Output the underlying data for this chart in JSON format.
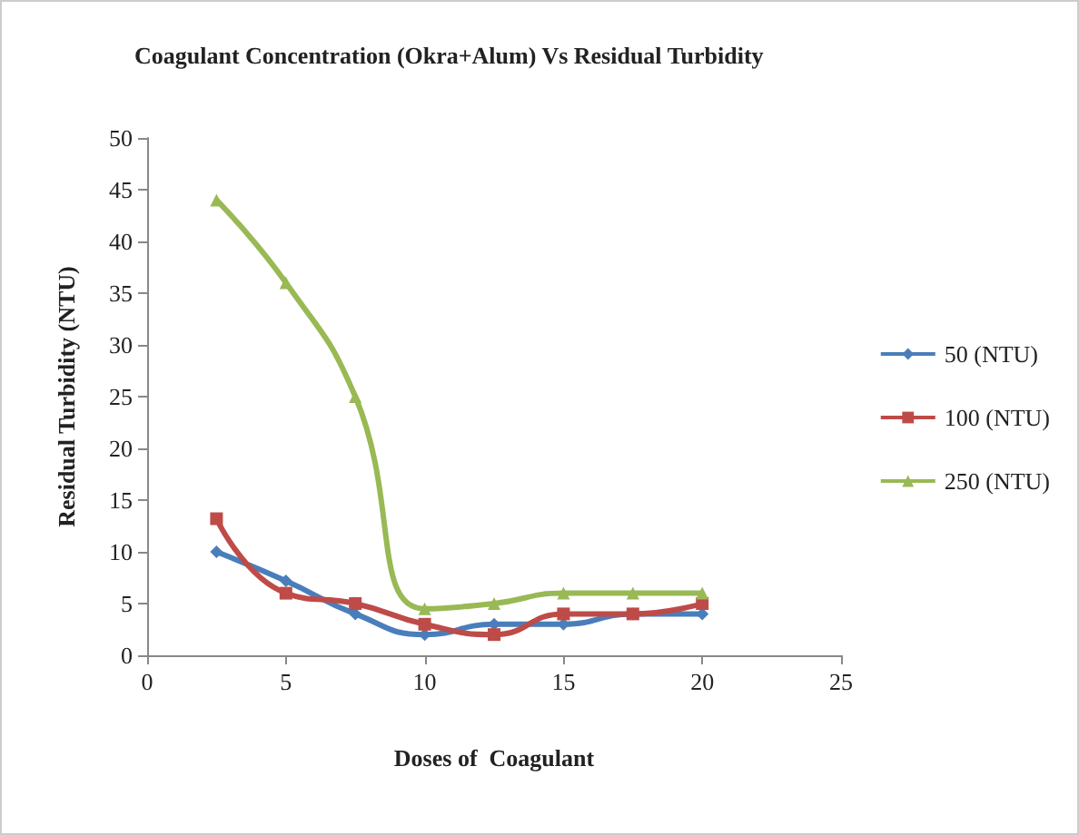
{
  "chart_data": {
    "type": "line",
    "title": "Coagulant Concentration (Okra+Alum) Vs Residual Turbidity",
    "xlabel": "Doses of  Coagulant",
    "ylabel": "Residual Turbidity (NTU)",
    "x": [
      2.5,
      5,
      7.5,
      10,
      12.5,
      15,
      17.5,
      20
    ],
    "series": [
      {
        "name": "50 (NTU)",
        "color": "#4a7ebb",
        "marker": "diamond",
        "values": [
          10,
          7.2,
          4,
          2,
          3,
          3,
          4,
          4
        ]
      },
      {
        "name": "100 (NTU)",
        "color": "#be4b48",
        "marker": "square",
        "values": [
          13.2,
          6,
          5,
          3,
          2,
          4,
          4,
          5
        ]
      },
      {
        "name": "250 (NTU)",
        "color": "#98b954",
        "marker": "triangle",
        "values": [
          44,
          36,
          25,
          4.5,
          5,
          6,
          6,
          6
        ]
      }
    ],
    "xlim": [
      0,
      25
    ],
    "xticks": [
      0,
      5,
      10,
      15,
      20,
      25
    ],
    "ylim": [
      0,
      50
    ],
    "yticks": [
      0,
      5,
      10,
      15,
      20,
      25,
      30,
      35,
      40,
      45,
      50
    ],
    "grid": false,
    "legend": "right"
  }
}
